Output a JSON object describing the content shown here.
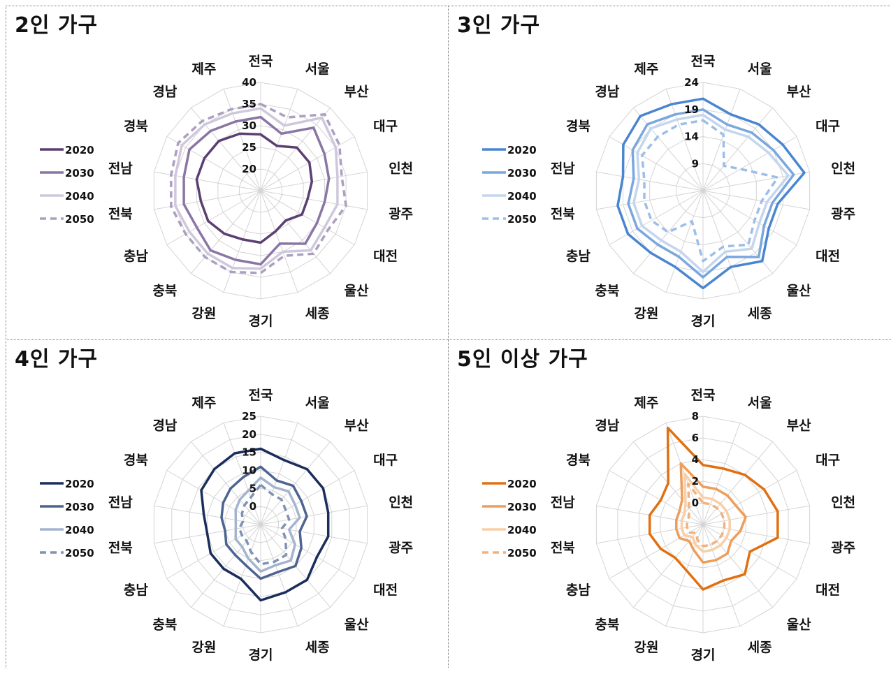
{
  "chart_data": [
    {
      "type": "radar",
      "title": "2인 가구",
      "categories": [
        "전국",
        "서울",
        "부산",
        "대구",
        "인천",
        "광주",
        "대전",
        "울산",
        "세종",
        "경기",
        "강원",
        "충북",
        "충남",
        "전북",
        "전남",
        "경북",
        "경남",
        "제주"
      ],
      "rlim": [
        15,
        40
      ],
      "ticks": [
        "20",
        "25",
        "30",
        "35",
        "40"
      ],
      "tick_values": [
        20,
        25,
        30,
        35,
        40
      ],
      "colors": [
        "#5b3f72",
        "#8a76a4",
        "#cfc8dc",
        "#aba0c0"
      ],
      "series": [
        {
          "name": "2020",
          "values": [
            28,
            26,
            28,
            28,
            27,
            26,
            26,
            24,
            25,
            27,
            27,
            28,
            29,
            29,
            30,
            30,
            30,
            29
          ],
          "dashed": false
        },
        {
          "name": "2030",
          "values": [
            32,
            29,
            34,
            32,
            31,
            30,
            30,
            31,
            28,
            32,
            32,
            33,
            32,
            33,
            33,
            34,
            33,
            32
          ],
          "dashed": false
        },
        {
          "name": "2040",
          "values": [
            34,
            31,
            37,
            35,
            33,
            33,
            32,
            33,
            30,
            33,
            34,
            34,
            34,
            35,
            35,
            36,
            35,
            34
          ],
          "dashed": false
        },
        {
          "name": "2050",
          "values": [
            35,
            33,
            38,
            36,
            34,
            35,
            33,
            34,
            31,
            34,
            35,
            35,
            35,
            36,
            36,
            37,
            36,
            35
          ],
          "dashed": true
        }
      ]
    },
    {
      "type": "radar",
      "title": "3인 가구",
      "categories": [
        "전국",
        "서울",
        "부산",
        "대구",
        "인천",
        "광주",
        "대전",
        "울산",
        "세종",
        "경기",
        "강원",
        "충북",
        "충남",
        "전북",
        "전남",
        "경북",
        "경남",
        "제주"
      ],
      "rlim": [
        4,
        24
      ],
      "ticks": [
        "9",
        "14",
        "19",
        "24"
      ],
      "tick_values": [
        9,
        14,
        19,
        24
      ],
      "colors": [
        "#4a86d0",
        "#7aa7de",
        "#c4d6ee",
        "#9dbee8"
      ],
      "series": [
        {
          "name": "2020",
          "values": [
            21,
            19,
            20,
            21,
            23,
            18,
            18,
            21,
            19,
            22,
            19,
            19,
            20,
            20,
            19,
            21,
            22,
            21
          ],
          "dashed": false
        },
        {
          "name": "2030",
          "values": [
            19,
            17,
            18,
            19,
            21,
            17,
            17,
            20,
            17,
            20,
            17,
            17,
            18,
            18,
            17,
            19,
            20,
            19
          ],
          "dashed": false
        },
        {
          "name": "2040",
          "values": [
            18,
            16,
            17,
            18,
            20,
            16,
            16,
            18,
            16,
            19,
            16,
            16,
            17,
            17,
            16,
            18,
            19,
            18
          ],
          "dashed": false
        },
        {
          "name": "2050",
          "values": [
            17,
            15,
            10,
            12,
            18,
            15,
            15,
            17,
            15,
            17,
            10,
            14,
            15,
            15,
            15,
            17,
            17,
            17
          ],
          "dashed": true
        }
      ]
    },
    {
      "type": "radar",
      "title": "4인 가구",
      "categories": [
        "전국",
        "서울",
        "부산",
        "대구",
        "인천",
        "광주",
        "대전",
        "울산",
        "세종",
        "경기",
        "강원",
        "충북",
        "충남",
        "전북",
        "전남",
        "경북",
        "경남",
        "제주"
      ],
      "rlim": [
        -5,
        25
      ],
      "ticks": [
        "0",
        "5",
        "10",
        "15",
        "20",
        "25"
      ],
      "tick_values": [
        0,
        5,
        10,
        15,
        20,
        25
      ],
      "colors": [
        "#1b2d5c",
        "#4d6390",
        "#a4b4cf",
        "#7f93b4"
      ],
      "series": [
        {
          "name": "2020",
          "values": [
            16,
            14,
            15,
            15,
            14,
            14,
            13,
            15,
            15,
            16,
            11,
            11,
            11,
            10,
            11,
            14,
            15,
            16
          ],
          "dashed": false
        },
        {
          "name": "2030",
          "values": [
            11,
            8,
            9,
            8,
            8,
            6,
            8,
            10,
            9,
            10,
            7,
            6,
            6,
            5,
            6,
            7,
            8,
            9
          ],
          "dashed": false
        },
        {
          "name": "2040",
          "values": [
            8,
            6,
            7,
            6,
            6,
            3,
            6,
            8,
            7,
            8,
            5,
            3,
            3,
            2,
            2,
            3,
            4,
            5
          ],
          "dashed": false
        },
        {
          "name": "2050",
          "values": [
            6,
            4,
            4,
            3,
            3,
            1,
            3,
            6,
            6,
            6,
            3,
            1,
            1,
            1,
            0,
            1,
            2,
            3
          ],
          "dashed": true
        }
      ]
    },
    {
      "type": "radar",
      "title": "5인 이상 가구",
      "categories": [
        "전국",
        "서울",
        "부산",
        "대구",
        "인천",
        "광주",
        "대전",
        "울산",
        "세종",
        "경기",
        "강원",
        "충북",
        "충남",
        "전북",
        "전남",
        "경북",
        "경남",
        "제주"
      ],
      "rlim": [
        -2,
        8
      ],
      "ticks": [
        "0",
        "2",
        "4",
        "6",
        "8"
      ],
      "tick_values": [
        0,
        2,
        4,
        6,
        8
      ],
      "colors": [
        "#e07010",
        "#ee9d5a",
        "#f7cfa8",
        "#f2b27e"
      ],
      "series": [
        {
          "name": "2020",
          "values": [
            3.5,
            3.5,
            4,
            4.5,
            5,
            5,
            3,
            4,
            3.5,
            4,
            2.5,
            2,
            2.5,
            3,
            3,
            2.5,
            3,
            7.5
          ],
          "dashed": false
        },
        {
          "name": "2030",
          "values": [
            1.5,
            1.5,
            1.5,
            1.5,
            2,
            1.5,
            1,
            1.5,
            1.5,
            1.5,
            0.5,
            0,
            0.5,
            0.5,
            0.5,
            0.5,
            1,
            4
          ],
          "dashed": false
        },
        {
          "name": "2040",
          "values": [
            0.5,
            0.5,
            0.5,
            0.5,
            0.5,
            0.5,
            0.5,
            0.5,
            0.5,
            0.5,
            0,
            -0.5,
            0,
            0,
            0,
            0,
            0.5,
            3
          ],
          "dashed": false
        },
        {
          "name": "2050",
          "values": [
            0,
            0,
            0,
            0,
            0,
            0,
            0,
            0,
            0,
            0,
            -0.5,
            -1,
            -0.5,
            -0.5,
            -0.5,
            -0.5,
            0,
            2
          ],
          "dashed": true
        }
      ]
    }
  ]
}
